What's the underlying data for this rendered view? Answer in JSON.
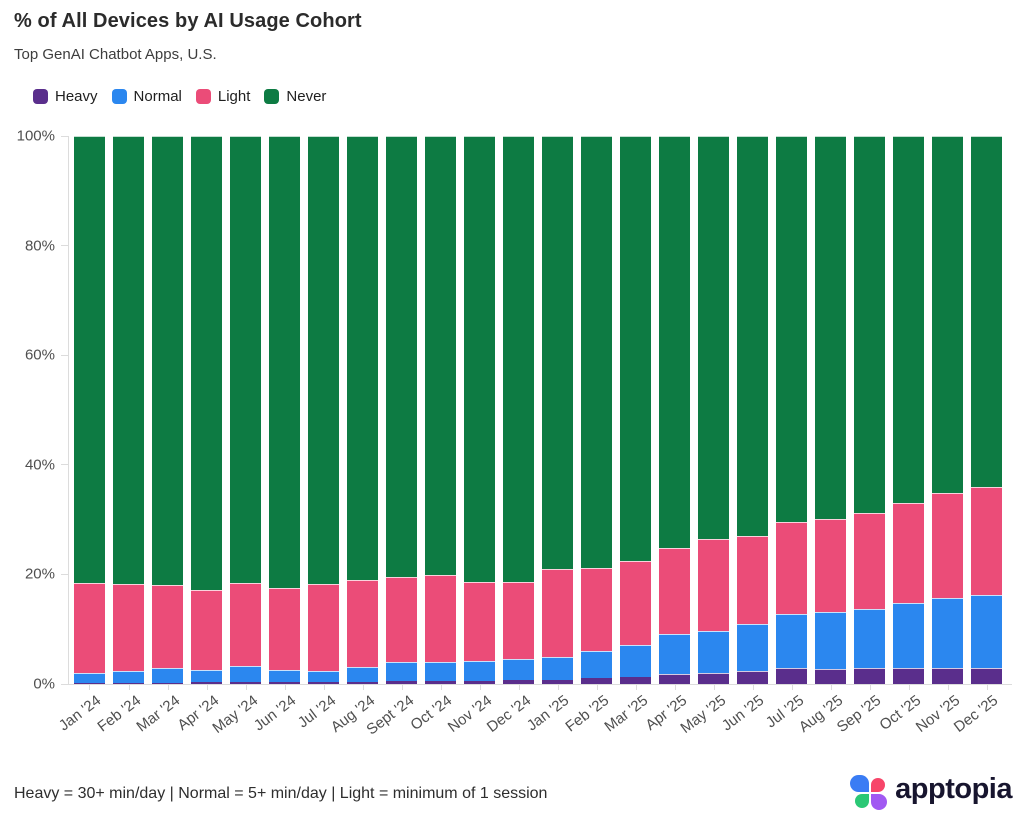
{
  "header": {
    "title": "% of All Devices by AI Usage Cohort",
    "subtitle": "Top GenAI Chatbot Apps, U.S."
  },
  "chart_data": {
    "type": "bar",
    "stacked": true,
    "title": "% of All Devices by AI Usage Cohort",
    "subtitle": "Top GenAI Chatbot Apps, U.S.",
    "xlabel": "",
    "ylabel": "",
    "ylim": [
      0,
      100
    ],
    "yticks": [
      "0%",
      "20%",
      "40%",
      "60%",
      "80%",
      "100%"
    ],
    "grid": false,
    "legend_position": "top-left",
    "categories": [
      "Jan '24",
      "Feb '24",
      "Mar '24",
      "Apr '24",
      "May '24",
      "Jun '24",
      "Jul '24",
      "Aug '24",
      "Sept '24",
      "Oct '24",
      "Nov '24",
      "Dec '24",
      "Jan '25",
      "Feb '25",
      "Mar '25",
      "Apr '25",
      "May '25",
      "Jun '25",
      "Jul '25",
      "Aug '25",
      "Sep '25",
      "Oct '25",
      "Nov '25",
      "Dec '25"
    ],
    "series": [
      {
        "name": "Heavy",
        "color": "#5A2E8C",
        "values": [
          0.2,
          0.2,
          0.2,
          0.3,
          0.3,
          0.3,
          0.3,
          0.4,
          0.5,
          0.5,
          0.6,
          0.7,
          0.8,
          1.1,
          1.3,
          1.9,
          2.0,
          2.4,
          3.0,
          2.7,
          2.9,
          3.0,
          3.0,
          3.0
        ]
      },
      {
        "name": "Normal",
        "color": "#2B87EF",
        "values": [
          1.9,
          2.2,
          2.7,
          2.3,
          3.0,
          2.3,
          2.1,
          2.7,
          3.5,
          3.5,
          3.6,
          3.9,
          4.2,
          5.0,
          5.8,
          7.2,
          7.7,
          8.5,
          9.8,
          10.4,
          10.8,
          11.7,
          12.7,
          13.3
        ]
      },
      {
        "name": "Light",
        "color": "#EB4C78",
        "values": [
          16.3,
          15.8,
          15.2,
          14.6,
          15.1,
          14.9,
          15.8,
          15.8,
          15.5,
          15.9,
          14.5,
          14.1,
          16.0,
          15.0,
          15.4,
          15.7,
          16.8,
          16.2,
          16.8,
          17.1,
          17.6,
          18.4,
          19.1,
          19.7
        ]
      },
      {
        "name": "Never",
        "color": "#0D7B43",
        "values": [
          81.6,
          81.8,
          81.9,
          82.8,
          81.6,
          82.5,
          81.8,
          81.1,
          80.5,
          80.1,
          81.3,
          81.3,
          79.0,
          78.9,
          77.5,
          75.2,
          73.5,
          72.9,
          70.4,
          69.8,
          68.7,
          66.9,
          65.2,
          64.0
        ]
      }
    ]
  },
  "footer": {
    "note": "Heavy = 30+ min/day | Normal = 5+ min/day | Light = minimum of 1 session",
    "logo_text": "apptopia",
    "logo_colors": {
      "blue": "#3A7CF4",
      "pink": "#F74569",
      "green": "#2BC875",
      "purple": "#A159F2"
    }
  }
}
